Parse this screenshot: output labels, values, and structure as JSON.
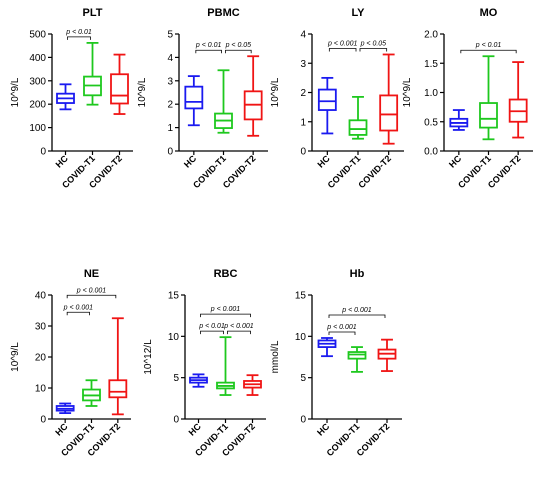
{
  "colors": {
    "HC": "#1a1af0",
    "COVID-T1": "#1ec81e",
    "COVID-T2": "#f01414"
  },
  "chart_data": [
    {
      "type": "box",
      "title": "PLT",
      "ylabel": "10^9/L",
      "ylim": [
        0,
        500
      ],
      "yticks": [
        0,
        100,
        200,
        300,
        400,
        500
      ],
      "categories": [
        "HC",
        "COVID-T1",
        "COVID-T2"
      ],
      "boxes": [
        {
          "category": "HC",
          "min": 178,
          "q1": 205,
          "median": 225,
          "q3": 245,
          "max": 285
        },
        {
          "category": "COVID-T1",
          "min": 198,
          "q1": 238,
          "median": 280,
          "q3": 318,
          "max": 462
        },
        {
          "category": "COVID-T2",
          "min": 158,
          "q1": 203,
          "median": 237,
          "q3": 328,
          "max": 412
        }
      ],
      "annotations": [
        {
          "label": "p < 0.01",
          "from": "HC",
          "to": "COVID-T1"
        }
      ]
    },
    {
      "type": "box",
      "title": "PBMC",
      "ylabel": "10^9/L",
      "ylim": [
        0,
        5
      ],
      "yticks": [
        0,
        1,
        2,
        3,
        4,
        5
      ],
      "categories": [
        "HC",
        "COVID-T1",
        "COVID-T2"
      ],
      "boxes": [
        {
          "category": "HC",
          "min": 1.1,
          "q1": 1.82,
          "median": 2.1,
          "q3": 2.75,
          "max": 3.2
        },
        {
          "category": "COVID-T1",
          "min": 0.78,
          "q1": 0.98,
          "median": 1.3,
          "q3": 1.6,
          "max": 3.45
        },
        {
          "category": "COVID-T2",
          "min": 0.65,
          "q1": 1.35,
          "median": 1.98,
          "q3": 2.55,
          "max": 4.05
        }
      ],
      "annotations": [
        {
          "label": "p < 0.01",
          "from": "HC",
          "to": "COVID-T1"
        },
        {
          "label": "p < 0.05",
          "from": "COVID-T1",
          "to": "COVID-T2"
        }
      ]
    },
    {
      "type": "box",
      "title": "LY",
      "ylabel": "10^9/L",
      "ylim": [
        0,
        4
      ],
      "yticks": [
        0,
        1,
        2,
        3,
        4
      ],
      "categories": [
        "HC",
        "COVID-T1",
        "COVID-T2"
      ],
      "boxes": [
        {
          "category": "HC",
          "min": 0.6,
          "q1": 1.4,
          "median": 1.7,
          "q3": 2.1,
          "max": 2.5
        },
        {
          "category": "COVID-T1",
          "min": 0.42,
          "q1": 0.55,
          "median": 0.75,
          "q3": 1.05,
          "max": 1.85
        },
        {
          "category": "COVID-T2",
          "min": 0.25,
          "q1": 0.7,
          "median": 1.25,
          "q3": 1.9,
          "max": 3.3
        }
      ],
      "annotations": [
        {
          "label": "p < 0.001",
          "from": "HC",
          "to": "COVID-T1"
        },
        {
          "label": "p < 0.05",
          "from": "COVID-T1",
          "to": "COVID-T2"
        }
      ]
    },
    {
      "type": "box",
      "title": "MO",
      "ylabel": "10^9/L",
      "ylim": [
        0,
        2
      ],
      "yticks": [
        0,
        0.5,
        1.0,
        1.5,
        2.0
      ],
      "categories": [
        "HC",
        "COVID-T1",
        "COVID-T2"
      ],
      "boxes": [
        {
          "category": "HC",
          "min": 0.36,
          "q1": 0.42,
          "median": 0.48,
          "q3": 0.55,
          "max": 0.7
        },
        {
          "category": "COVID-T1",
          "min": 0.2,
          "q1": 0.4,
          "median": 0.55,
          "q3": 0.82,
          "max": 1.62
        },
        {
          "category": "COVID-T2",
          "min": 0.23,
          "q1": 0.5,
          "median": 0.68,
          "q3": 0.88,
          "max": 1.52
        }
      ],
      "annotations": [
        {
          "label": "p < 0.01",
          "from": "HC",
          "to": "COVID-T2"
        }
      ]
    },
    {
      "type": "box",
      "title": "NE",
      "ylabel": "10^9/L",
      "ylim": [
        0,
        40
      ],
      "yticks": [
        0,
        10,
        20,
        30,
        40
      ],
      "categories": [
        "HC",
        "COVID-T1",
        "COVID-T2"
      ],
      "boxes": [
        {
          "category": "HC",
          "min": 1.9,
          "q1": 2.7,
          "median": 3.3,
          "q3": 4.2,
          "max": 5.0
        },
        {
          "category": "COVID-T1",
          "min": 4.2,
          "q1": 6.0,
          "median": 7.6,
          "q3": 9.5,
          "max": 12.5
        },
        {
          "category": "COVID-T2",
          "min": 1.5,
          "q1": 7.0,
          "median": 8.8,
          "q3": 12.5,
          "max": 32.5
        }
      ],
      "annotations": [
        {
          "label": "p < 0.001",
          "from": "HC",
          "to": "COVID-T1"
        },
        {
          "label": "p < 0.001",
          "from": "HC",
          "to": "COVID-T2"
        }
      ]
    },
    {
      "type": "box",
      "title": "RBC",
      "ylabel": "10^12/L",
      "ylim": [
        0,
        15
      ],
      "yticks": [
        0,
        5,
        10,
        15
      ],
      "categories": [
        "HC",
        "COVID-T1",
        "COVID-T2"
      ],
      "boxes": [
        {
          "category": "HC",
          "min": 3.9,
          "q1": 4.4,
          "median": 4.7,
          "q3": 5.0,
          "max": 5.4
        },
        {
          "category": "COVID-T1",
          "min": 2.9,
          "q1": 3.7,
          "median": 4.0,
          "q3": 4.4,
          "max": 9.9
        },
        {
          "category": "COVID-T2",
          "min": 2.9,
          "q1": 3.8,
          "median": 4.2,
          "q3": 4.6,
          "max": 5.3
        }
      ],
      "annotations": [
        {
          "label": "p < 0.01",
          "from": "HC",
          "to": "COVID-T1"
        },
        {
          "label": "p < 0.001",
          "from": "COVID-T1",
          "to": "COVID-T2"
        },
        {
          "label": "p < 0.001",
          "from": "HC",
          "to": "COVID-T2"
        }
      ]
    },
    {
      "type": "box",
      "title": "Hb",
      "ylabel": "mmol/L",
      "ylim": [
        0,
        15
      ],
      "yticks": [
        0,
        5,
        10,
        15
      ],
      "categories": [
        "HC",
        "COVID-T1",
        "COVID-T2"
      ],
      "boxes": [
        {
          "category": "HC",
          "min": 7.6,
          "q1": 8.7,
          "median": 9.1,
          "q3": 9.5,
          "max": 9.8
        },
        {
          "category": "COVID-T1",
          "min": 5.7,
          "q1": 7.3,
          "median": 7.8,
          "q3": 8.1,
          "max": 8.7
        },
        {
          "category": "COVID-T2",
          "min": 5.8,
          "q1": 7.3,
          "median": 7.9,
          "q3": 8.4,
          "max": 9.6
        }
      ],
      "annotations": [
        {
          "label": "p < 0.001",
          "from": "HC",
          "to": "COVID-T1"
        },
        {
          "label": "p < 0.001",
          "from": "HC",
          "to": "COVID-T2"
        }
      ]
    }
  ]
}
